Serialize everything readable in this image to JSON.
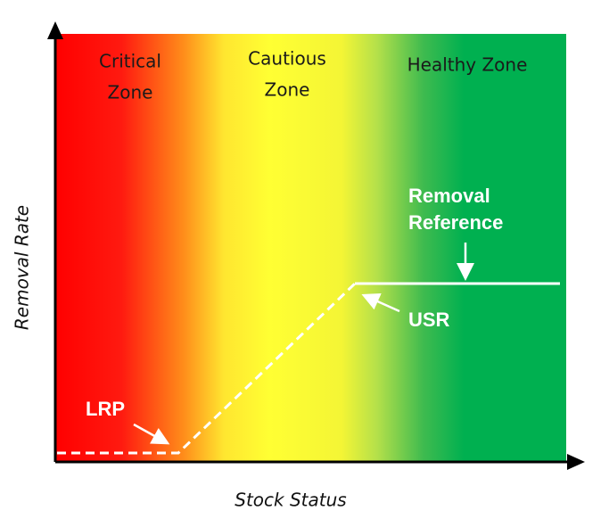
{
  "zones": [
    [
      "Critical",
      "Zone"
    ],
    [
      "Cautious",
      "Zone"
    ],
    [
      "Healthy Zone"
    ]
  ],
  "reference": [
    "Removal",
    "Reference"
  ],
  "usr": "USR",
  "lrp": "LRP",
  "axes": {
    "x": "Stock Status",
    "y": "Removal Rate"
  }
}
